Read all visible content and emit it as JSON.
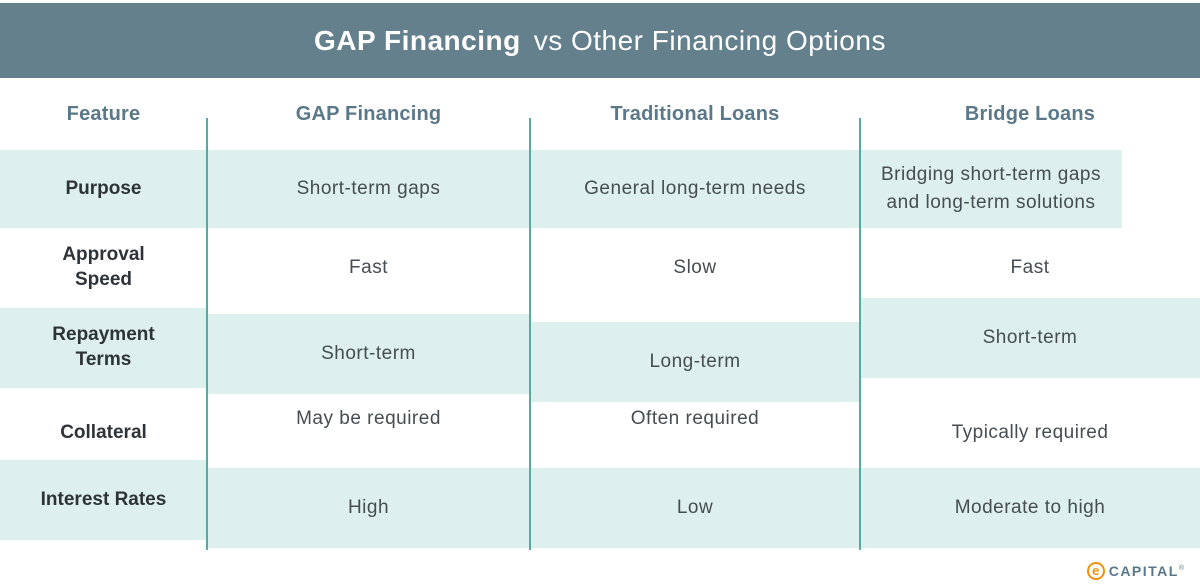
{
  "banner": {
    "title_bold": "GAP Financing",
    "title_rest": "vs Other Financing Options"
  },
  "chart_data": {
    "type": "table",
    "title": "GAP Financing vs Other Financing Options",
    "columns": [
      "Feature",
      "GAP Financing",
      "Traditional Loans",
      "Bridge Loans"
    ],
    "rows": [
      [
        "Purpose",
        "Short-term gaps",
        "General long-term needs",
        "Bridging short-term gaps and long-term solutions"
      ],
      [
        "Approval\nSpeed",
        "Fast",
        "Slow",
        "Fast"
      ],
      [
        "Repayment\nTerms",
        "Short-term",
        "Long-term",
        "Short-term"
      ],
      [
        "Collateral",
        "May be required",
        "Often required",
        "Typically required"
      ],
      [
        "Interest Rates",
        "High",
        "Low",
        "Moderate to high"
      ]
    ],
    "layout": {
      "striped_rows": "odd rows highlighted",
      "column_dividers": true
    }
  },
  "colors": {
    "banner_bg": "#64808c",
    "banner_text": "#ffffff",
    "row_highlight": "#def0ed",
    "divider": "#55aaa2",
    "column_header_text": "#5b7888",
    "feature_text": "#2d3338",
    "value_text": "#454d52",
    "logo_orange": "#f3920a",
    "logo_slate": "#5b7888"
  },
  "logo": {
    "symbol": "e",
    "name": "CAPITAL",
    "registered": "®"
  }
}
